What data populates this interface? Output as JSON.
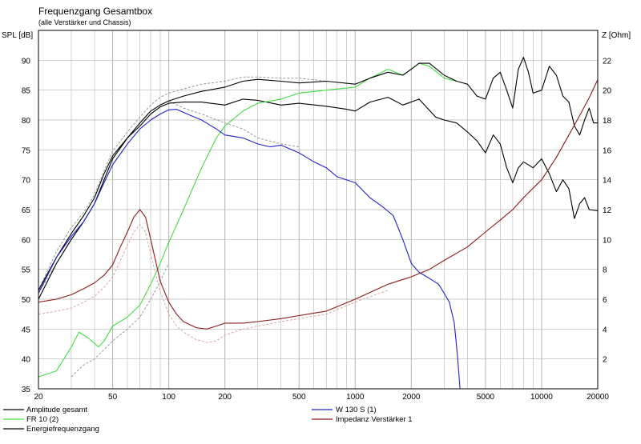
{
  "chart_data": {
    "type": "line",
    "title": "Frequenzgang Gesamtbox",
    "subtitle": "(alle Verstärker und Chassis)",
    "y_left_label": "SPL [dB]",
    "y_right_label": "Z [Ohm]",
    "x_scale": "log",
    "xlim": [
      20,
      20000
    ],
    "ylim_left": [
      35,
      95
    ],
    "ylim_right": [
      0,
      24
    ],
    "grid": true,
    "x_ticks": [
      20,
      50,
      100,
      200,
      500,
      1000,
      2000,
      5000,
      10000,
      20000
    ],
    "x_tick_labels": [
      "20",
      "50",
      "100",
      "200",
      "500",
      "1000",
      "2000",
      "5000",
      "10000",
      "20000"
    ],
    "y_left_ticks": [
      35,
      40,
      45,
      50,
      55,
      60,
      65,
      70,
      75,
      80,
      85,
      90
    ],
    "y_right_ticks": [
      2,
      4,
      6,
      8,
      10,
      12,
      14,
      16,
      18,
      20,
      22
    ],
    "colors": {
      "amplitude": "#000000",
      "fr10": "#44dd44",
      "energie": "#000000",
      "w130": "#2222cc",
      "impedanz": "#8b1a1a",
      "grid": "#b4b4b4",
      "dashed": "#999999",
      "dashed_pink": "#d8a8a8"
    },
    "series": [
      {
        "name": "Amplitude gesamt",
        "color": "#000000",
        "axis": "left",
        "points": [
          [
            20,
            50
          ],
          [
            25,
            56
          ],
          [
            30,
            60
          ],
          [
            35,
            63
          ],
          [
            40,
            66
          ],
          [
            45,
            70
          ],
          [
            50,
            73.5
          ],
          [
            60,
            77
          ],
          [
            70,
            79
          ],
          [
            80,
            81
          ],
          [
            90,
            82.2
          ],
          [
            100,
            82.8
          ],
          [
            120,
            83
          ],
          [
            150,
            83
          ],
          [
            200,
            82.5
          ],
          [
            250,
            83.5
          ],
          [
            300,
            83.3
          ],
          [
            400,
            82.5
          ],
          [
            500,
            82.8
          ],
          [
            700,
            82.3
          ],
          [
            900,
            81.8
          ],
          [
            1000,
            81.5
          ],
          [
            1200,
            83
          ],
          [
            1500,
            83.8
          ],
          [
            1800,
            82.5
          ],
          [
            2200,
            83.5
          ],
          [
            2700,
            80.5
          ],
          [
            3000,
            80
          ],
          [
            3500,
            79.5
          ],
          [
            4000,
            78
          ],
          [
            4500,
            76.5
          ],
          [
            5000,
            74.5
          ],
          [
            5500,
            77.5
          ],
          [
            6000,
            76
          ],
          [
            6500,
            72
          ],
          [
            7000,
            69.5
          ],
          [
            7500,
            72
          ],
          [
            8000,
            73
          ],
          [
            9000,
            72
          ],
          [
            10000,
            73.5
          ],
          [
            11000,
            71
          ],
          [
            12000,
            68
          ],
          [
            13000,
            70
          ],
          [
            14000,
            68.5
          ],
          [
            15000,
            63.5
          ],
          [
            16000,
            66
          ],
          [
            17000,
            67
          ],
          [
            18000,
            65
          ],
          [
            20000,
            64.8
          ]
        ]
      },
      {
        "name": "FR 10  (2)",
        "color": "#44dd44",
        "axis": "left",
        "points": [
          [
            20,
            37
          ],
          [
            25,
            38
          ],
          [
            30,
            42
          ],
          [
            33,
            44.5
          ],
          [
            37,
            43.5
          ],
          [
            42,
            42
          ],
          [
            45,
            43
          ],
          [
            50,
            45.5
          ],
          [
            60,
            47
          ],
          [
            70,
            49
          ],
          [
            80,
            52.5
          ],
          [
            90,
            56
          ],
          [
            100,
            59.5
          ],
          [
            120,
            65
          ],
          [
            150,
            72
          ],
          [
            180,
            77
          ],
          [
            200,
            79
          ],
          [
            250,
            81.5
          ],
          [
            300,
            82.8
          ],
          [
            400,
            83.5
          ],
          [
            500,
            84.5
          ],
          [
            700,
            85
          ],
          [
            1000,
            85.5
          ],
          [
            1200,
            87
          ],
          [
            1500,
            88.5
          ],
          [
            1800,
            87.5
          ],
          [
            2000,
            88.5
          ],
          [
            2200,
            89.5
          ],
          [
            2500,
            89
          ],
          [
            3000,
            87
          ],
          [
            3500,
            86.5
          ]
        ]
      },
      {
        "name": "Energiefrequenzgang",
        "color": "#000000",
        "axis": "left",
        "points": [
          [
            20,
            51.5
          ],
          [
            25,
            57
          ],
          [
            30,
            61
          ],
          [
            35,
            64
          ],
          [
            40,
            67
          ],
          [
            45,
            71
          ],
          [
            50,
            74
          ],
          [
            60,
            77
          ],
          [
            70,
            79.5
          ],
          [
            80,
            81.5
          ],
          [
            90,
            82.5
          ],
          [
            100,
            83.2
          ],
          [
            120,
            84
          ],
          [
            150,
            84.8
          ],
          [
            200,
            85.5
          ],
          [
            250,
            86.5
          ],
          [
            300,
            86.8
          ],
          [
            400,
            86.5
          ],
          [
            500,
            86.2
          ],
          [
            700,
            86.5
          ],
          [
            1000,
            86
          ],
          [
            1200,
            87
          ],
          [
            1500,
            88
          ],
          [
            1800,
            87.5
          ],
          [
            2000,
            88.5
          ],
          [
            2200,
            89.5
          ],
          [
            2500,
            89.5
          ],
          [
            3000,
            87.5
          ],
          [
            3500,
            86.5
          ],
          [
            4000,
            86
          ],
          [
            4500,
            84
          ],
          [
            5000,
            83.5
          ],
          [
            5500,
            87
          ],
          [
            6000,
            88
          ],
          [
            6500,
            85
          ],
          [
            7000,
            82
          ],
          [
            7500,
            88.5
          ],
          [
            8000,
            90.5
          ],
          [
            8500,
            88
          ],
          [
            9000,
            84.5
          ],
          [
            10000,
            85
          ],
          [
            11000,
            89
          ],
          [
            12000,
            87.5
          ],
          [
            13000,
            84
          ],
          [
            14000,
            83
          ],
          [
            15000,
            79
          ],
          [
            16000,
            77.5
          ],
          [
            17000,
            80
          ],
          [
            18000,
            82
          ],
          [
            19000,
            79.5
          ],
          [
            20000,
            79.5
          ]
        ]
      },
      {
        "name": "W 130 S  (1)",
        "color": "#2222cc",
        "axis": "left",
        "points": [
          [
            20,
            51
          ],
          [
            25,
            57
          ],
          [
            30,
            60.5
          ],
          [
            35,
            63
          ],
          [
            40,
            66
          ],
          [
            45,
            69.5
          ],
          [
            50,
            72.5
          ],
          [
            60,
            76
          ],
          [
            70,
            78.5
          ],
          [
            80,
            80
          ],
          [
            90,
            81
          ],
          [
            100,
            81.7
          ],
          [
            110,
            81.8
          ],
          [
            130,
            80.8
          ],
          [
            150,
            80
          ],
          [
            180,
            78.5
          ],
          [
            200,
            77.5
          ],
          [
            250,
            77
          ],
          [
            300,
            76
          ],
          [
            350,
            75.5
          ],
          [
            400,
            75.8
          ],
          [
            500,
            74.5
          ],
          [
            600,
            73
          ],
          [
            700,
            72
          ],
          [
            800,
            70.5
          ],
          [
            1000,
            69.5
          ],
          [
            1200,
            67
          ],
          [
            1400,
            65.5
          ],
          [
            1600,
            64
          ],
          [
            1800,
            60
          ],
          [
            2000,
            56
          ],
          [
            2200,
            54.5
          ],
          [
            2500,
            53.5
          ],
          [
            2800,
            52.5
          ],
          [
            3000,
            51
          ],
          [
            3200,
            49.5
          ],
          [
            3400,
            46
          ],
          [
            3550,
            40
          ],
          [
            3650,
            35
          ],
          [
            20000,
            35
          ]
        ]
      },
      {
        "name": "Impedanz Verstärker 1",
        "color": "#8b1a1a",
        "axis": "right",
        "points": [
          [
            20,
            5.8
          ],
          [
            25,
            6
          ],
          [
            30,
            6.3
          ],
          [
            35,
            6.7
          ],
          [
            40,
            7.1
          ],
          [
            45,
            7.6
          ],
          [
            50,
            8.3
          ],
          [
            55,
            9.5
          ],
          [
            60,
            10.5
          ],
          [
            65,
            11.5
          ],
          [
            70,
            12
          ],
          [
            75,
            11.5
          ],
          [
            80,
            10
          ],
          [
            90,
            7.2
          ],
          [
            100,
            5.8
          ],
          [
            110,
            5
          ],
          [
            120,
            4.5
          ],
          [
            140,
            4.1
          ],
          [
            160,
            4
          ],
          [
            180,
            4.2
          ],
          [
            200,
            4.4
          ],
          [
            250,
            4.4
          ],
          [
            300,
            4.5
          ],
          [
            400,
            4.7
          ],
          [
            500,
            4.9
          ],
          [
            700,
            5.2
          ],
          [
            1000,
            6
          ],
          [
            1500,
            7
          ],
          [
            2000,
            7.5
          ],
          [
            2500,
            8
          ],
          [
            3000,
            8.6
          ],
          [
            4000,
            9.5
          ],
          [
            5000,
            10.5
          ],
          [
            6000,
            11.3
          ],
          [
            7000,
            12
          ],
          [
            8000,
            12.8
          ],
          [
            10000,
            14
          ],
          [
            12000,
            15.5
          ],
          [
            14000,
            17
          ],
          [
            16000,
            18.3
          ],
          [
            18000,
            19.5
          ],
          [
            20000,
            20.7
          ]
        ]
      }
    ],
    "dashed_series": [
      {
        "color": "#999999",
        "axis": "left",
        "points": [
          [
            20,
            51.5
          ],
          [
            25,
            58
          ],
          [
            30,
            62
          ],
          [
            35,
            64.5
          ],
          [
            40,
            67.5
          ],
          [
            45,
            71.5
          ],
          [
            50,
            74.8
          ],
          [
            60,
            78
          ],
          [
            70,
            80.5
          ],
          [
            80,
            82.5
          ],
          [
            90,
            83.8
          ],
          [
            100,
            84.5
          ],
          [
            120,
            85.2
          ],
          [
            150,
            86
          ],
          [
            200,
            86.5
          ],
          [
            250,
            87.2
          ],
          [
            300,
            87.2
          ],
          [
            400,
            87
          ],
          [
            500,
            87
          ],
          [
            700,
            86.5
          ]
        ]
      },
      {
        "color": "#999999",
        "axis": "left",
        "points": [
          [
            20,
            51
          ],
          [
            25,
            56
          ],
          [
            30,
            60
          ],
          [
            35,
            63
          ],
          [
            40,
            66
          ],
          [
            45,
            70
          ],
          [
            50,
            73.5
          ],
          [
            60,
            77
          ],
          [
            70,
            79.5
          ],
          [
            80,
            81.5
          ],
          [
            90,
            82.5
          ],
          [
            100,
            83.2
          ],
          [
            120,
            82
          ],
          [
            150,
            81
          ],
          [
            200,
            79.5
          ],
          [
            250,
            78.5
          ],
          [
            300,
            77
          ],
          [
            400,
            76
          ],
          [
            500,
            75.5
          ]
        ]
      },
      {
        "color": "#999999",
        "axis": "left",
        "points": [
          [
            30,
            37
          ],
          [
            35,
            39
          ],
          [
            40,
            40
          ],
          [
            50,
            43
          ],
          [
            60,
            45
          ],
          [
            70,
            47
          ],
          [
            80,
            50
          ],
          [
            90,
            53
          ],
          [
            100,
            56
          ]
        ]
      },
      {
        "color": "#d8a8a8",
        "axis": "right",
        "points": [
          [
            20,
            5
          ],
          [
            25,
            5.2
          ],
          [
            30,
            5.4
          ],
          [
            35,
            5.8
          ],
          [
            40,
            6.2
          ],
          [
            45,
            6.8
          ],
          [
            50,
            7.5
          ],
          [
            55,
            8.6
          ],
          [
            60,
            9.6
          ],
          [
            65,
            10.5
          ],
          [
            70,
            11
          ],
          [
            75,
            10.5
          ],
          [
            80,
            9
          ],
          [
            90,
            6.5
          ],
          [
            100,
            5
          ],
          [
            110,
            4.2
          ],
          [
            120,
            3.8
          ],
          [
            140,
            3.3
          ],
          [
            160,
            3.1
          ],
          [
            180,
            3.2
          ],
          [
            200,
            3.6
          ],
          [
            250,
            4
          ],
          [
            300,
            4.2
          ],
          [
            400,
            4.5
          ],
          [
            500,
            4.7
          ],
          [
            700,
            5
          ],
          [
            1000,
            5.8
          ],
          [
            1500,
            6.6
          ]
        ]
      }
    ]
  }
}
